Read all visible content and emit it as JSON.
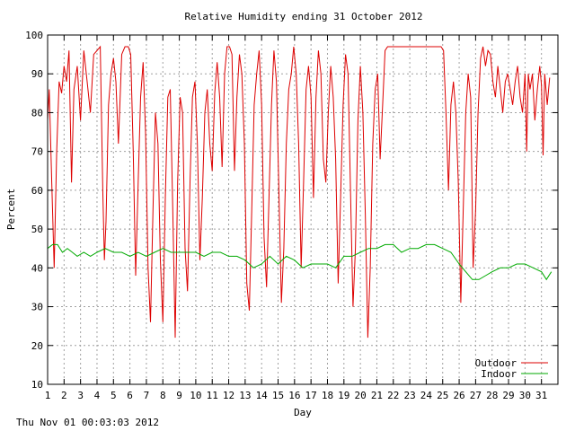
{
  "chart_data": {
    "type": "line",
    "title": "Relative Humidity ending 31 October 2012",
    "xlabel": "Day",
    "ylabel": "Percent",
    "xlim": [
      1,
      32
    ],
    "ylim": [
      10,
      100
    ],
    "x_ticks": [
      "1",
      "2",
      "3",
      "4",
      "5",
      "6",
      "7",
      "8",
      "9",
      "10",
      "11",
      "12",
      "13",
      "14",
      "15",
      "16",
      "17",
      "18",
      "19",
      "20",
      "21",
      "22",
      "23",
      "24",
      "25",
      "26",
      "27",
      "28",
      "29",
      "30",
      "31"
    ],
    "y_ticks": [
      10,
      20,
      30,
      40,
      50,
      60,
      70,
      80,
      90,
      100
    ],
    "grid": true,
    "legend_position": "bottom-right",
    "series": [
      {
        "name": "Outdoor",
        "color": "#dd0000",
        "points": [
          [
            1.0,
            78
          ],
          [
            1.1,
            86
          ],
          [
            1.25,
            62
          ],
          [
            1.4,
            40
          ],
          [
            1.55,
            70
          ],
          [
            1.7,
            88
          ],
          [
            1.85,
            85
          ],
          [
            2.0,
            92
          ],
          [
            2.15,
            88
          ],
          [
            2.3,
            96
          ],
          [
            2.45,
            62
          ],
          [
            2.6,
            86
          ],
          [
            2.8,
            92
          ],
          [
            3.0,
            78
          ],
          [
            3.2,
            96
          ],
          [
            3.4,
            88
          ],
          [
            3.6,
            80
          ],
          [
            3.8,
            95
          ],
          [
            4.0,
            96
          ],
          [
            4.2,
            97
          ],
          [
            4.35,
            60
          ],
          [
            4.45,
            42
          ],
          [
            4.55,
            52
          ],
          [
            4.7,
            82
          ],
          [
            4.85,
            90
          ],
          [
            5.0,
            94
          ],
          [
            5.15,
            88
          ],
          [
            5.3,
            72
          ],
          [
            5.5,
            95
          ],
          [
            5.7,
            97
          ],
          [
            5.9,
            97
          ],
          [
            6.05,
            95
          ],
          [
            6.2,
            70
          ],
          [
            6.35,
            38
          ],
          [
            6.5,
            62
          ],
          [
            6.65,
            84
          ],
          [
            6.8,
            93
          ],
          [
            6.95,
            75
          ],
          [
            7.1,
            40
          ],
          [
            7.25,
            26
          ],
          [
            7.4,
            55
          ],
          [
            7.55,
            80
          ],
          [
            7.7,
            72
          ],
          [
            7.85,
            42
          ],
          [
            8.0,
            26
          ],
          [
            8.15,
            58
          ],
          [
            8.3,
            84
          ],
          [
            8.45,
            86
          ],
          [
            8.6,
            55
          ],
          [
            8.75,
            22
          ],
          [
            8.9,
            62
          ],
          [
            9.05,
            84
          ],
          [
            9.2,
            80
          ],
          [
            9.35,
            45
          ],
          [
            9.5,
            34
          ],
          [
            9.65,
            62
          ],
          [
            9.8,
            84
          ],
          [
            9.95,
            88
          ],
          [
            10.1,
            72
          ],
          [
            10.25,
            42
          ],
          [
            10.4,
            58
          ],
          [
            10.55,
            80
          ],
          [
            10.7,
            86
          ],
          [
            10.85,
            72
          ],
          [
            11.0,
            65
          ],
          [
            11.15,
            85
          ],
          [
            11.3,
            93
          ],
          [
            11.45,
            84
          ],
          [
            11.6,
            66
          ],
          [
            11.75,
            90
          ],
          [
            11.9,
            97
          ],
          [
            12.05,
            97
          ],
          [
            12.2,
            95
          ],
          [
            12.35,
            65
          ],
          [
            12.5,
            84
          ],
          [
            12.65,
            95
          ],
          [
            12.8,
            90
          ],
          [
            12.95,
            72
          ],
          [
            13.1,
            36
          ],
          [
            13.25,
            29
          ],
          [
            13.4,
            55
          ],
          [
            13.55,
            82
          ],
          [
            13.7,
            90
          ],
          [
            13.85,
            96
          ],
          [
            14.0,
            82
          ],
          [
            14.15,
            48
          ],
          [
            14.3,
            35
          ],
          [
            14.45,
            58
          ],
          [
            14.6,
            82
          ],
          [
            14.75,
            96
          ],
          [
            14.9,
            88
          ],
          [
            15.05,
            60
          ],
          [
            15.2,
            31
          ],
          [
            15.35,
            45
          ],
          [
            15.5,
            72
          ],
          [
            15.65,
            86
          ],
          [
            15.8,
            90
          ],
          [
            15.95,
            97
          ],
          [
            16.1,
            90
          ],
          [
            16.25,
            72
          ],
          [
            16.4,
            40
          ],
          [
            16.55,
            62
          ],
          [
            16.7,
            86
          ],
          [
            16.85,
            92
          ],
          [
            17.0,
            84
          ],
          [
            17.15,
            58
          ],
          [
            17.3,
            84
          ],
          [
            17.45,
            96
          ],
          [
            17.6,
            90
          ],
          [
            17.75,
            68
          ],
          [
            17.9,
            62
          ],
          [
            18.05,
            80
          ],
          [
            18.2,
            92
          ],
          [
            18.35,
            84
          ],
          [
            18.5,
            68
          ],
          [
            18.65,
            36
          ],
          [
            18.8,
            58
          ],
          [
            18.95,
            82
          ],
          [
            19.1,
            95
          ],
          [
            19.25,
            90
          ],
          [
            19.4,
            60
          ],
          [
            19.55,
            30
          ],
          [
            19.7,
            45
          ],
          [
            19.85,
            78
          ],
          [
            20.0,
            92
          ],
          [
            20.15,
            80
          ],
          [
            20.3,
            54
          ],
          [
            20.45,
            22
          ],
          [
            20.6,
            40
          ],
          [
            20.75,
            72
          ],
          [
            20.9,
            86
          ],
          [
            21.05,
            90
          ],
          [
            21.2,
            68
          ],
          [
            21.35,
            82
          ],
          [
            21.5,
            96
          ],
          [
            21.65,
            97
          ],
          [
            21.8,
            97
          ],
          [
            21.95,
            97
          ],
          [
            22.1,
            97
          ],
          [
            22.5,
            97
          ],
          [
            23.0,
            97
          ],
          [
            23.5,
            97
          ],
          [
            24.0,
            97
          ],
          [
            24.5,
            97
          ],
          [
            24.9,
            97
          ],
          [
            25.05,
            96
          ],
          [
            25.2,
            80
          ],
          [
            25.35,
            60
          ],
          [
            25.5,
            82
          ],
          [
            25.65,
            88
          ],
          [
            25.8,
            80
          ],
          [
            25.95,
            62
          ],
          [
            26.1,
            31
          ],
          [
            26.25,
            55
          ],
          [
            26.4,
            80
          ],
          [
            26.55,
            90
          ],
          [
            26.7,
            84
          ],
          [
            26.85,
            40
          ],
          [
            27.0,
            55
          ],
          [
            27.15,
            80
          ],
          [
            27.3,
            94
          ],
          [
            27.45,
            97
          ],
          [
            27.6,
            92
          ],
          [
            27.75,
            96
          ],
          [
            27.9,
            95
          ],
          [
            28.05,
            88
          ],
          [
            28.2,
            84
          ],
          [
            28.35,
            92
          ],
          [
            28.5,
            86
          ],
          [
            28.65,
            80
          ],
          [
            28.8,
            88
          ],
          [
            28.95,
            90
          ],
          [
            29.1,
            86
          ],
          [
            29.25,
            82
          ],
          [
            29.4,
            88
          ],
          [
            29.55,
            92
          ],
          [
            29.7,
            84
          ],
          [
            29.85,
            80
          ],
          [
            30.0,
            90
          ],
          [
            30.1,
            70
          ],
          [
            30.2,
            90
          ],
          [
            30.3,
            86
          ],
          [
            30.45,
            90
          ],
          [
            30.6,
            78
          ],
          [
            30.75,
            86
          ],
          [
            30.9,
            92
          ],
          [
            31.0,
            87
          ],
          [
            31.1,
            69
          ],
          [
            31.2,
            90
          ],
          [
            31.35,
            82
          ],
          [
            31.5,
            89
          ]
        ]
      },
      {
        "name": "Indoor",
        "color": "#00aa00",
        "points": [
          [
            1.0,
            45
          ],
          [
            1.3,
            46
          ],
          [
            1.6,
            46
          ],
          [
            1.9,
            44
          ],
          [
            2.2,
            45
          ],
          [
            2.5,
            44
          ],
          [
            2.8,
            43
          ],
          [
            3.2,
            44
          ],
          [
            3.6,
            43
          ],
          [
            4.0,
            44
          ],
          [
            4.5,
            45
          ],
          [
            5.0,
            44
          ],
          [
            5.5,
            44
          ],
          [
            6.0,
            43
          ],
          [
            6.5,
            44
          ],
          [
            7.0,
            43
          ],
          [
            7.5,
            44
          ],
          [
            8.0,
            45
          ],
          [
            8.5,
            44
          ],
          [
            9.0,
            44
          ],
          [
            9.5,
            44
          ],
          [
            10.0,
            44
          ],
          [
            10.5,
            43
          ],
          [
            11.0,
            44
          ],
          [
            11.5,
            44
          ],
          [
            12.0,
            43
          ],
          [
            12.5,
            43
          ],
          [
            13.0,
            42
          ],
          [
            13.5,
            40
          ],
          [
            14.0,
            41
          ],
          [
            14.5,
            43
          ],
          [
            15.0,
            41
          ],
          [
            15.5,
            43
          ],
          [
            16.0,
            42
          ],
          [
            16.5,
            40
          ],
          [
            17.0,
            41
          ],
          [
            17.5,
            41
          ],
          [
            18.0,
            41
          ],
          [
            18.5,
            40
          ],
          [
            19.0,
            43
          ],
          [
            19.5,
            43
          ],
          [
            20.0,
            44
          ],
          [
            20.5,
            45
          ],
          [
            21.0,
            45
          ],
          [
            21.5,
            46
          ],
          [
            22.0,
            46
          ],
          [
            22.5,
            44
          ],
          [
            23.0,
            45
          ],
          [
            23.5,
            45
          ],
          [
            24.0,
            46
          ],
          [
            24.5,
            46
          ],
          [
            25.0,
            45
          ],
          [
            25.5,
            44
          ],
          [
            26.0,
            41
          ],
          [
            26.4,
            39
          ],
          [
            26.8,
            37
          ],
          [
            27.2,
            37
          ],
          [
            27.6,
            38
          ],
          [
            28.0,
            39
          ],
          [
            28.5,
            40
          ],
          [
            29.0,
            40
          ],
          [
            29.5,
            41
          ],
          [
            30.0,
            41
          ],
          [
            30.5,
            40
          ],
          [
            31.0,
            39
          ],
          [
            31.3,
            37
          ],
          [
            31.6,
            39
          ]
        ]
      }
    ]
  },
  "footer": {
    "timestamp": "Thu Nov 01 00:03:03 2012"
  }
}
